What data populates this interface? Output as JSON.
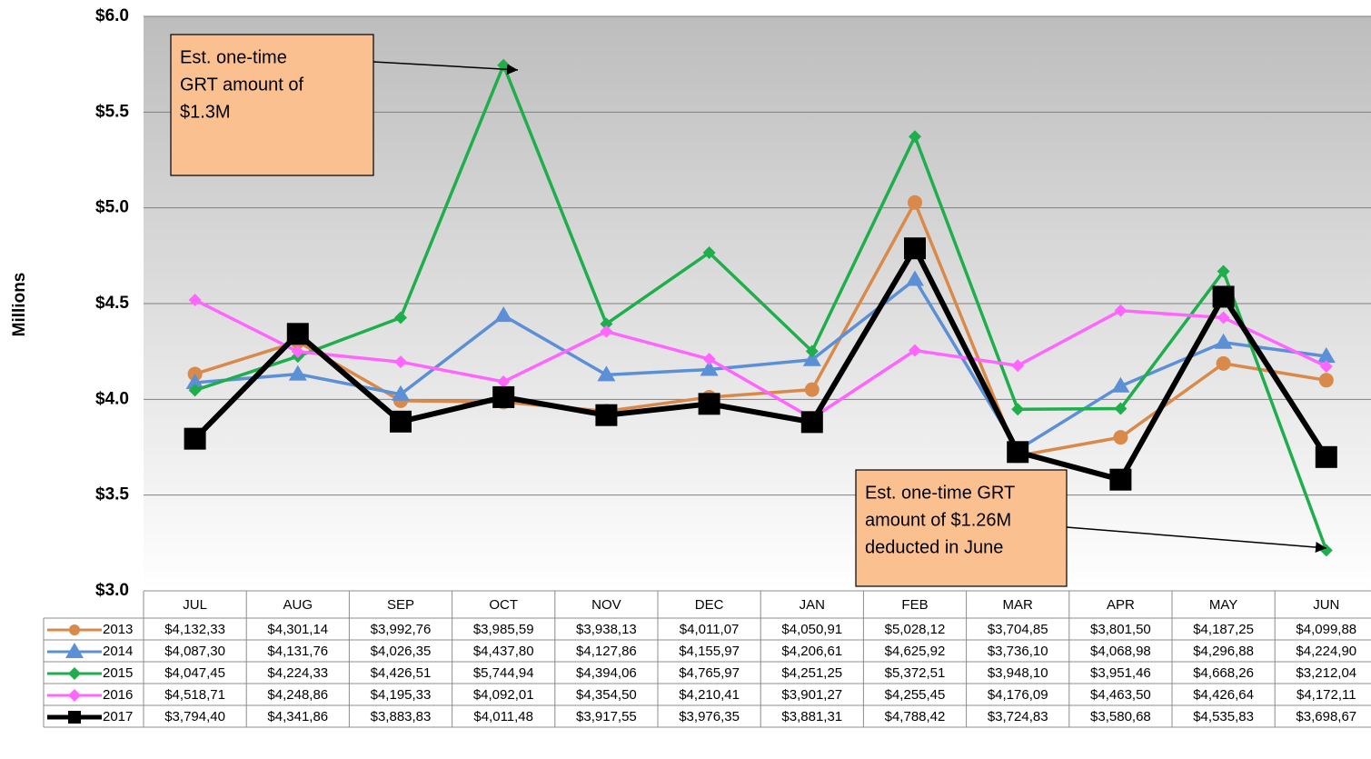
{
  "chart_data": {
    "type": "line",
    "y_label": "Millions",
    "categories": [
      "JUL",
      "AUG",
      "SEP",
      "OCT",
      "NOV",
      "DEC",
      "JAN",
      "FEB",
      "MAR",
      "APR",
      "MAY",
      "JUN"
    ],
    "ylim": [
      3,
      6
    ],
    "yticks": [
      {
        "value": 3,
        "label": "$3.0"
      },
      {
        "value": 3.5,
        "label": "$3.5"
      },
      {
        "value": 4,
        "label": "$4.0"
      },
      {
        "value": 4.5,
        "label": "$4.5"
      },
      {
        "value": 5,
        "label": "$5.0"
      },
      {
        "value": 5.5,
        "label": "$5.5"
      },
      {
        "value": 6,
        "label": "$6.0"
      }
    ],
    "grid": true,
    "series": [
      {
        "name": "2013",
        "color": "#d9894a",
        "marker": "circle",
        "values": [
          4.13233,
          4.30114,
          3.99276,
          3.98559,
          3.93813,
          4.01107,
          4.05091,
          5.02812,
          3.70485,
          3.8015,
          4.18725,
          4.09988
        ],
        "value_labels": [
          "$4,132,33",
          "$4,301,14",
          "$3,992,76",
          "$3,985,59",
          "$3,938,13",
          "$4,011,07",
          "$4,050,91",
          "$5,028,12",
          "$3,704,85",
          "$3,801,50",
          "$4,187,25",
          "$4,099,88"
        ]
      },
      {
        "name": "2014",
        "color": "#5b8fd6",
        "marker": "triangle",
        "values": [
          4.0873,
          4.13176,
          4.02635,
          4.4378,
          4.12786,
          4.15597,
          4.20661,
          4.62592,
          3.7361,
          4.06898,
          4.29688,
          4.2249
        ],
        "value_labels": [
          "$4,087,30",
          "$4,131,76",
          "$4,026,35",
          "$4,437,80",
          "$4,127,86",
          "$4,155,97",
          "$4,206,61",
          "$4,625,92",
          "$3,736,10",
          "$4,068,98",
          "$4,296,88",
          "$4,224,90"
        ]
      },
      {
        "name": "2015",
        "color": "#1fae4c",
        "marker": "diamond",
        "values": [
          4.04745,
          4.22433,
          4.42651,
          5.74494,
          4.39406,
          4.76597,
          4.25125,
          5.37251,
          3.9481,
          3.95146,
          4.66826,
          3.21204
        ],
        "value_labels": [
          "$4,047,45",
          "$4,224,33",
          "$4,426,51",
          "$5,744,94",
          "$4,394,06",
          "$4,765,97",
          "$4,251,25",
          "$5,372,51",
          "$3,948,10",
          "$3,951,46",
          "$4,668,26",
          "$3,212,04"
        ]
      },
      {
        "name": "2016",
        "color": "#ff66ff",
        "marker": "diamond",
        "values": [
          4.51871,
          4.24886,
          4.19533,
          4.09201,
          4.3545,
          4.21041,
          3.90127,
          4.25545,
          4.17609,
          4.4635,
          4.42664,
          4.17211
        ],
        "value_labels": [
          "$4,518,71",
          "$4,248,86",
          "$4,195,33",
          "$4,092,01",
          "$4,354,50",
          "$4,210,41",
          "$3,901,27",
          "$4,255,45",
          "$4,176,09",
          "$4,463,50",
          "$4,426,64",
          "$4,172,11"
        ]
      },
      {
        "name": "2017",
        "color": "#000000",
        "marker": "square",
        "values": [
          3.7944,
          4.34186,
          3.88383,
          4.01148,
          3.91755,
          3.97635,
          3.88131,
          4.78842,
          3.72483,
          3.58068,
          4.53583,
          3.69867
        ],
        "value_labels": [
          "$3,794,40",
          "$4,341,86",
          "$3,883,83",
          "$4,011,48",
          "$3,917,55",
          "$3,976,35",
          "$3,881,31",
          "$4,788,42",
          "$3,724,83",
          "$3,580,68",
          "$4,535,83",
          "$3,698,67"
        ]
      }
    ],
    "annotations": [
      {
        "lines": [
          "Est. one-time",
          "GRT amount of",
          "$1.3M"
        ]
      },
      {
        "lines": [
          "Est. one-time GRT",
          "amount of $1.26M",
          "deducted in June"
        ]
      }
    ]
  }
}
